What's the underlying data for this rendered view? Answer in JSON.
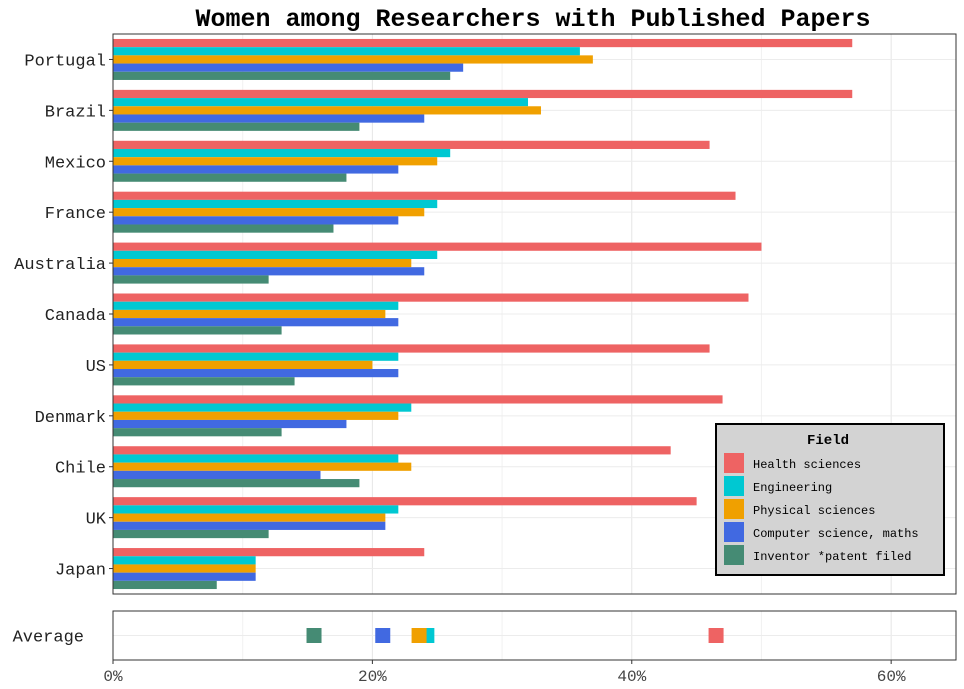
{
  "chart_data": {
    "type": "bar",
    "orientation": "horizontal",
    "title": "Women among Researchers with Published Papers",
    "xlabel": "",
    "ylabel": "",
    "xlim": [
      0,
      65
    ],
    "x_ticks": [
      0,
      20,
      40,
      60
    ],
    "x_tick_format": "percent",
    "grid": true,
    "legend": {
      "title": "Field",
      "placement": "bottom-right"
    },
    "categories": [
      "Portugal",
      "Brazil",
      "Mexico",
      "France",
      "Australia",
      "Canada",
      "US",
      "Denmark",
      "Chile",
      "UK",
      "Japan"
    ],
    "series": [
      {
        "name": "Health sciences",
        "color": "#ee6363",
        "values": [
          57,
          57,
          46,
          48,
          50,
          49,
          46,
          47,
          43,
          45,
          24
        ]
      },
      {
        "name": "Engineering",
        "color": "#00c8d2",
        "values": [
          36,
          32,
          26,
          25,
          25,
          22,
          22,
          23,
          22,
          22,
          11
        ]
      },
      {
        "name": "Physical sciences",
        "color": "#f0a000",
        "values": [
          37,
          33,
          25,
          24,
          23,
          21,
          20,
          22,
          23,
          21,
          11
        ]
      },
      {
        "name": "Computer science, maths",
        "color": "#4169e1",
        "values": [
          27,
          24,
          22,
          22,
          24,
          22,
          22,
          18,
          16,
          21,
          11
        ]
      },
      {
        "name": "Inventor *patent filed",
        "color": "#458b74",
        "values": [
          26,
          19,
          18,
          17,
          12,
          13,
          14,
          13,
          19,
          12,
          8
        ]
      }
    ],
    "average": {
      "label": "Average",
      "values": [
        {
          "series": "Health sciences",
          "value": 46.5
        },
        {
          "series": "Engineering",
          "value": 24.2
        },
        {
          "series": "Physical sciences",
          "value": 23.6
        },
        {
          "series": "Computer science, maths",
          "value": 20.8
        },
        {
          "series": "Inventor *patent filed",
          "value": 15.5
        }
      ]
    }
  }
}
